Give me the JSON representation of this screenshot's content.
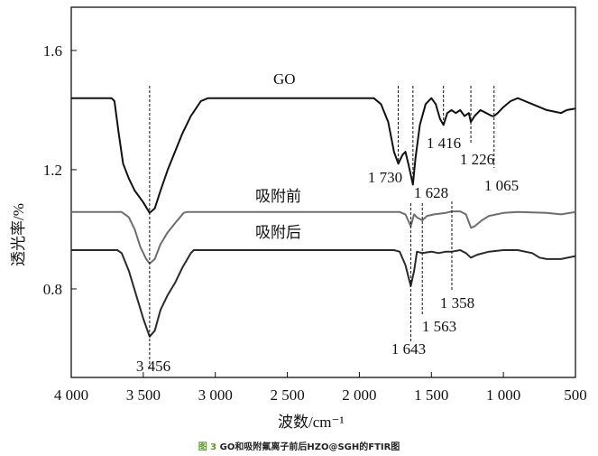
{
  "chart_data": {
    "type": "line",
    "title": "",
    "xlabel": "波数/cm⁻¹",
    "ylabel": "透光率/%",
    "xlim": [
      4000,
      500
    ],
    "ylim": [
      0.503,
      1.745
    ],
    "x_reversed": true,
    "grid": false,
    "xticks": [
      4000,
      3500,
      3000,
      2500,
      2000,
      1500,
      1000,
      500
    ],
    "xtick_labels": [
      "4 000",
      "3 500",
      "3 000",
      "2 500",
      "2 000",
      "1 500",
      "1 000",
      "500"
    ],
    "yticks": [
      0.8,
      1.2,
      1.6
    ],
    "ytick_labels": [
      "0.8",
      "1.2",
      "1.6"
    ],
    "series": [
      {
        "name": "GO",
        "color": "#111111",
        "points": [
          [
            4000,
            1.44
          ],
          [
            3720,
            1.44
          ],
          [
            3700,
            1.43
          ],
          [
            3670,
            1.32
          ],
          [
            3640,
            1.22
          ],
          [
            3600,
            1.17
          ],
          [
            3560,
            1.13
          ],
          [
            3500,
            1.09
          ],
          [
            3456,
            1.055
          ],
          [
            3420,
            1.07
          ],
          [
            3380,
            1.13
          ],
          [
            3330,
            1.2
          ],
          [
            3280,
            1.26
          ],
          [
            3230,
            1.32
          ],
          [
            3170,
            1.38
          ],
          [
            3100,
            1.43
          ],
          [
            3050,
            1.44
          ],
          [
            3000,
            1.44
          ],
          [
            1900,
            1.44
          ],
          [
            1850,
            1.42
          ],
          [
            1800,
            1.36
          ],
          [
            1760,
            1.26
          ],
          [
            1730,
            1.22
          ],
          [
            1700,
            1.25
          ],
          [
            1680,
            1.26
          ],
          [
            1660,
            1.22
          ],
          [
            1628,
            1.15
          ],
          [
            1610,
            1.24
          ],
          [
            1580,
            1.35
          ],
          [
            1540,
            1.42
          ],
          [
            1500,
            1.44
          ],
          [
            1470,
            1.42
          ],
          [
            1440,
            1.37
          ],
          [
            1416,
            1.35
          ],
          [
            1390,
            1.39
          ],
          [
            1360,
            1.4
          ],
          [
            1330,
            1.39
          ],
          [
            1300,
            1.4
          ],
          [
            1270,
            1.38
          ],
          [
            1240,
            1.39
          ],
          [
            1226,
            1.36
          ],
          [
            1200,
            1.38
          ],
          [
            1160,
            1.4
          ],
          [
            1120,
            1.39
          ],
          [
            1080,
            1.38
          ],
          [
            1065,
            1.38
          ],
          [
            1040,
            1.39
          ],
          [
            1000,
            1.41
          ],
          [
            950,
            1.43
          ],
          [
            900,
            1.44
          ],
          [
            850,
            1.43
          ],
          [
            800,
            1.42
          ],
          [
            750,
            1.41
          ],
          [
            700,
            1.4
          ],
          [
            650,
            1.395
          ],
          [
            600,
            1.39
          ],
          [
            560,
            1.4
          ],
          [
            500,
            1.405
          ]
        ]
      },
      {
        "name": "吸附前",
        "color": "#6e6e6e",
        "points": [
          [
            4000,
            1.058
          ],
          [
            3650,
            1.058
          ],
          [
            3600,
            1.04
          ],
          [
            3560,
            1.0
          ],
          [
            3520,
            0.94
          ],
          [
            3480,
            0.9
          ],
          [
            3456,
            0.885
          ],
          [
            3420,
            0.9
          ],
          [
            3380,
            0.95
          ],
          [
            3330,
            0.99
          ],
          [
            3280,
            1.02
          ],
          [
            3220,
            1.055
          ],
          [
            3200,
            1.058
          ],
          [
            1720,
            1.058
          ],
          [
            1680,
            1.05
          ],
          [
            1643,
            1.01
          ],
          [
            1620,
            1.05
          ],
          [
            1600,
            1.04
          ],
          [
            1563,
            1.03
          ],
          [
            1530,
            1.045
          ],
          [
            1480,
            1.05
          ],
          [
            1400,
            1.055
          ],
          [
            1360,
            1.06
          ],
          [
            1300,
            1.06
          ],
          [
            1260,
            1.05
          ],
          [
            1225,
            1.005
          ],
          [
            1200,
            1.01
          ],
          [
            1150,
            1.03
          ],
          [
            1100,
            1.045
          ],
          [
            1000,
            1.055
          ],
          [
            900,
            1.058
          ],
          [
            700,
            1.055
          ],
          [
            600,
            1.05
          ],
          [
            500,
            1.058
          ]
        ]
      },
      {
        "name": "吸附后",
        "color": "#2a2a2a",
        "points": [
          [
            4000,
            0.93
          ],
          [
            3680,
            0.93
          ],
          [
            3650,
            0.92
          ],
          [
            3600,
            0.86
          ],
          [
            3550,
            0.78
          ],
          [
            3500,
            0.7
          ],
          [
            3456,
            0.64
          ],
          [
            3420,
            0.66
          ],
          [
            3380,
            0.73
          ],
          [
            3330,
            0.78
          ],
          [
            3280,
            0.82
          ],
          [
            3230,
            0.87
          ],
          [
            3170,
            0.92
          ],
          [
            3150,
            0.93
          ],
          [
            1760,
            0.93
          ],
          [
            1720,
            0.925
          ],
          [
            1680,
            0.88
          ],
          [
            1643,
            0.81
          ],
          [
            1620,
            0.86
          ],
          [
            1600,
            0.925
          ],
          [
            1563,
            0.92
          ],
          [
            1500,
            0.925
          ],
          [
            1450,
            0.92
          ],
          [
            1400,
            0.925
          ],
          [
            1358,
            0.925
          ],
          [
            1300,
            0.93
          ],
          [
            1260,
            0.92
          ],
          [
            1226,
            0.905
          ],
          [
            1180,
            0.915
          ],
          [
            1100,
            0.925
          ],
          [
            1000,
            0.93
          ],
          [
            900,
            0.93
          ],
          [
            800,
            0.92
          ],
          [
            750,
            0.905
          ],
          [
            700,
            0.9
          ],
          [
            600,
            0.9
          ],
          [
            500,
            0.91
          ]
        ]
      }
    ],
    "annotations": [
      {
        "label": "3 456",
        "x": 3456
      },
      {
        "label": "1 730",
        "x": 1730
      },
      {
        "label": "1 628",
        "x": 1628
      },
      {
        "label": "1 416",
        "x": 1416
      },
      {
        "label": "1 226",
        "x": 1226
      },
      {
        "label": "1 065",
        "x": 1065
      },
      {
        "label": "1 643",
        "x": 1643
      },
      {
        "label": "1 563",
        "x": 1563
      },
      {
        "label": "1 358",
        "x": 1358
      }
    ]
  },
  "caption": {
    "figure_number": "图 3",
    "text": "GO和吸附氟离子前后HZO@SGH的FTIR图"
  }
}
